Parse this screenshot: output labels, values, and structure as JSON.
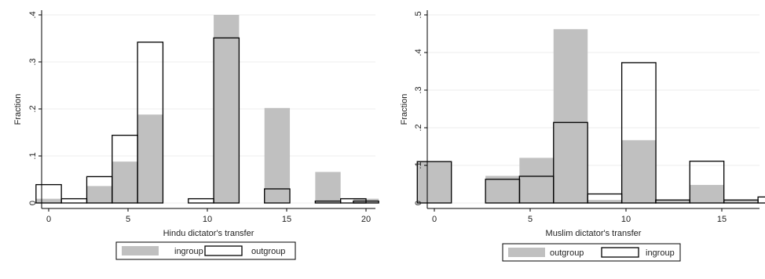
{
  "chart_data": [
    {
      "type": "bar",
      "subtype": "histogram",
      "xlabel": "Hindu dictator's transfer",
      "ylabel": "Fraction",
      "xlim": [
        -0.5,
        20.5
      ],
      "ylim": [
        0,
        0.4
      ],
      "xticks": [
        0,
        5,
        10,
        15,
        20
      ],
      "xtick_labels": [
        "0",
        "5",
        "10",
        "15",
        "20"
      ],
      "yticks": [
        0,
        0.1,
        0.2,
        0.3,
        0.4
      ],
      "ytick_labels": [
        "0",
        ".1",
        ".2",
        ".3",
        ".4"
      ],
      "grid": true,
      "legend_position": "bottom",
      "bin_width": 1.6,
      "series": [
        {
          "name": "ingroup",
          "style": "filled",
          "color": "#c0c0c0",
          "bars": [
            {
              "x": 0,
              "value": 0.009
            },
            {
              "x": 3.2,
              "value": 0.036
            },
            {
              "x": 4.8,
              "value": 0.088
            },
            {
              "x": 6.4,
              "value": 0.188
            },
            {
              "x": 11.2,
              "value": 0.4
            },
            {
              "x": 14.4,
              "value": 0.202
            },
            {
              "x": 17.6,
              "value": 0.066
            },
            {
              "x": 20,
              "value": 0.009
            }
          ]
        },
        {
          "name": "outgroup",
          "style": "outline",
          "color": "#000000",
          "bars": [
            {
              "x": 0,
              "value": 0.039
            },
            {
              "x": 1.6,
              "value": 0.009
            },
            {
              "x": 3.2,
              "value": 0.056
            },
            {
              "x": 4.8,
              "value": 0.144
            },
            {
              "x": 6.4,
              "value": 0.342
            },
            {
              "x": 9.6,
              "value": 0.009
            },
            {
              "x": 11.2,
              "value": 0.351
            },
            {
              "x": 14.4,
              "value": 0.03
            },
            {
              "x": 17.6,
              "value": 0.004
            },
            {
              "x": 19.2,
              "value": 0.009
            },
            {
              "x": 20,
              "value": 0.004
            }
          ]
        }
      ]
    },
    {
      "type": "bar",
      "subtype": "histogram",
      "xlabel": "Muslim dictator's transfer",
      "ylabel": "Fraction",
      "xlim": [
        -0.5,
        16.5
      ],
      "ylim": [
        0,
        0.5
      ],
      "xticks": [
        0,
        5,
        10,
        15
      ],
      "xtick_labels": [
        "0",
        "5",
        "10",
        "15"
      ],
      "yticks": [
        0,
        0.1,
        0.2,
        0.3,
        0.4,
        0.5
      ],
      "ytick_labels": [
        "0",
        ".1",
        ".2",
        ".3",
        ".4",
        ".5"
      ],
      "grid": true,
      "legend_position": "bottom",
      "bin_width": 1.78,
      "series": [
        {
          "name": "outgroup",
          "style": "filled",
          "color": "#c0c0c0",
          "bars": [
            {
              "x": 0,
              "value": 0.11
            },
            {
              "x": 3.56,
              "value": 0.072
            },
            {
              "x": 5.33,
              "value": 0.12
            },
            {
              "x": 7.11,
              "value": 0.462
            },
            {
              "x": 8.89,
              "value": 0.008
            },
            {
              "x": 10.67,
              "value": 0.167
            },
            {
              "x": 12.44,
              "value": 0.008
            },
            {
              "x": 14.22,
              "value": 0.048
            },
            {
              "x": 16,
              "value": 0.008
            }
          ]
        },
        {
          "name": "ingroup",
          "style": "outline",
          "color": "#000000",
          "bars": [
            {
              "x": 0,
              "value": 0.11
            },
            {
              "x": 3.56,
              "value": 0.063
            },
            {
              "x": 5.33,
              "value": 0.071
            },
            {
              "x": 7.11,
              "value": 0.214
            },
            {
              "x": 8.89,
              "value": 0.024
            },
            {
              "x": 10.67,
              "value": 0.373
            },
            {
              "x": 12.44,
              "value": 0.008
            },
            {
              "x": 14.22,
              "value": 0.111
            },
            {
              "x": 16,
              "value": 0.008
            },
            {
              "x": 17.78,
              "value": 0.016
            }
          ]
        }
      ]
    }
  ]
}
